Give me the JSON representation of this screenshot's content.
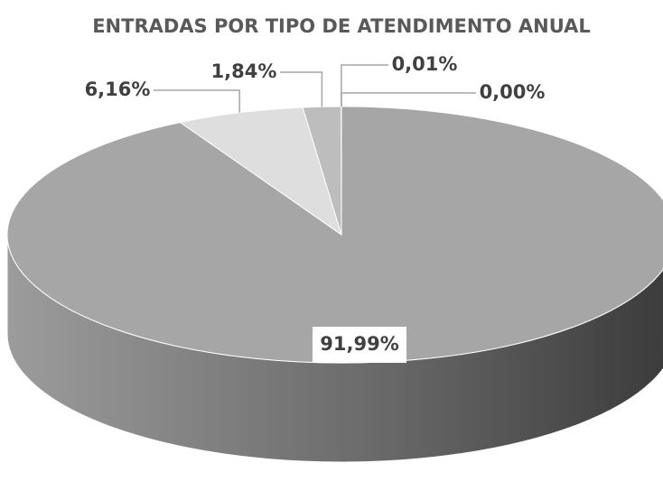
{
  "chart_data": {
    "type": "pie",
    "title": "ENTRADAS POR TIPO DE ATENDIMENTO ANUAL",
    "values": [
      91.99,
      6.16,
      1.84,
      0.01,
      0.0
    ],
    "value_labels": [
      "91,99%",
      "6,16%",
      "1,84%",
      "0,01%",
      "0,00%"
    ],
    "colors": [
      "#a6a6a6",
      "#dedede",
      "#bdbdbd",
      "#8c8c8c",
      "#6e6e6e"
    ]
  }
}
